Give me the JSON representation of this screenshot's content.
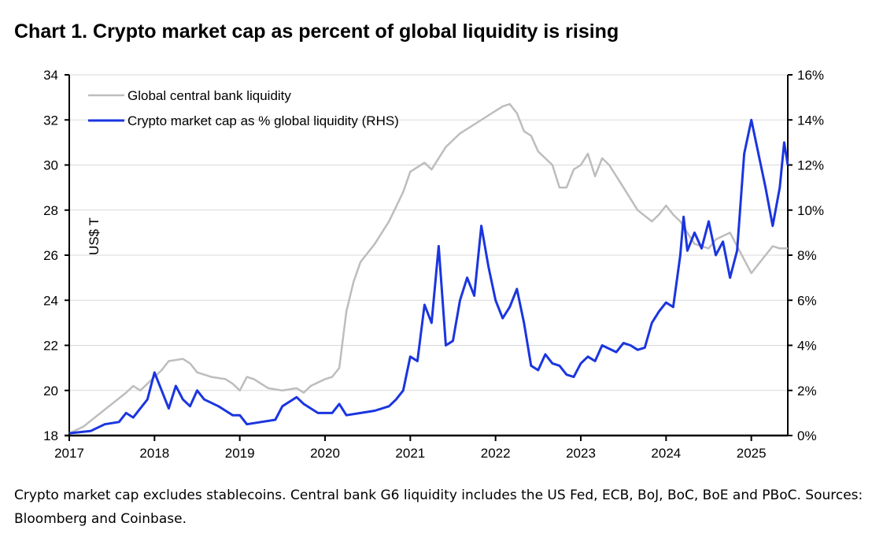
{
  "title": "Chart 1. Crypto market cap as percent of global liquidity is rising",
  "footnote": "Crypto market cap excludes stablecoins. Central bank G6 liquidity includes the US Fed, ECB, BoJ, BoC, BoE and PBoC. Sources: Bloomberg and Coinbase.",
  "chart_data": {
    "type": "line",
    "title": "Chart 1. Crypto market cap as percent of global liquidity is rising",
    "ylabel": "US$ T",
    "ylim": [
      18,
      34
    ],
    "y_ticks": [
      "18",
      "20",
      "22",
      "24",
      "26",
      "28",
      "30",
      "32",
      "34"
    ],
    "y2lim": [
      0,
      16
    ],
    "y2_ticks": [
      "0%",
      "2%",
      "4%",
      "6%",
      "8%",
      "10%",
      "12%",
      "14%",
      "16%"
    ],
    "x_ticks": [
      "2017",
      "2018",
      "2019",
      "2020",
      "2021",
      "2022",
      "2023",
      "2024",
      "2025"
    ],
    "xlim": [
      "2017-01",
      "2025-06-05"
    ],
    "grid": true,
    "legend_placement": "top-left",
    "series": [
      {
        "name": "Global central bank liquidity",
        "axis": "left",
        "color": "#bdbdbd",
        "points": [
          [
            "2017-01",
            18.1
          ],
          [
            "2017-03",
            18.4
          ],
          [
            "2017-05",
            18.9
          ],
          [
            "2017-07",
            19.4
          ],
          [
            "2017-09",
            19.9
          ],
          [
            "2017-10",
            20.2
          ],
          [
            "2017-11",
            20.0
          ],
          [
            "2018-01",
            20.6
          ],
          [
            "2018-02",
            20.9
          ],
          [
            "2018-03",
            21.3
          ],
          [
            "2018-05",
            21.4
          ],
          [
            "2018-06",
            21.2
          ],
          [
            "2018-07",
            20.8
          ],
          [
            "2018-09",
            20.6
          ],
          [
            "2018-11",
            20.5
          ],
          [
            "2018-12",
            20.3
          ],
          [
            "2019-01",
            20.0
          ],
          [
            "2019-02",
            20.6
          ],
          [
            "2019-03",
            20.5
          ],
          [
            "2019-05",
            20.1
          ],
          [
            "2019-07",
            20.0
          ],
          [
            "2019-09",
            20.1
          ],
          [
            "2019-10",
            19.9
          ],
          [
            "2019-11",
            20.2
          ],
          [
            "2020-01",
            20.5
          ],
          [
            "2020-02",
            20.6
          ],
          [
            "2020-03",
            21.0
          ],
          [
            "2020-04",
            23.5
          ],
          [
            "2020-05",
            24.8
          ],
          [
            "2020-06",
            25.7
          ],
          [
            "2020-08",
            26.5
          ],
          [
            "2020-10",
            27.5
          ],
          [
            "2020-12",
            28.8
          ],
          [
            "2021-01",
            29.7
          ],
          [
            "2021-03",
            30.1
          ],
          [
            "2021-04",
            29.8
          ],
          [
            "2021-06",
            30.8
          ],
          [
            "2021-08",
            31.4
          ],
          [
            "2021-10",
            31.8
          ],
          [
            "2021-12",
            32.2
          ],
          [
            "2022-02",
            32.6
          ],
          [
            "2022-03",
            32.7
          ],
          [
            "2022-04",
            32.3
          ],
          [
            "2022-05",
            31.5
          ],
          [
            "2022-06",
            31.3
          ],
          [
            "2022-07",
            30.6
          ],
          [
            "2022-09",
            30.0
          ],
          [
            "2022-10",
            29.0
          ],
          [
            "2022-11",
            29.0
          ],
          [
            "2022-12",
            29.8
          ],
          [
            "2023-01",
            30.0
          ],
          [
            "2023-02",
            30.5
          ],
          [
            "2023-03",
            29.5
          ],
          [
            "2023-04",
            30.3
          ],
          [
            "2023-05",
            30.0
          ],
          [
            "2023-07",
            29.0
          ],
          [
            "2023-09",
            28.0
          ],
          [
            "2023-11",
            27.5
          ],
          [
            "2023-12",
            27.8
          ],
          [
            "2024-01",
            28.2
          ],
          [
            "2024-02",
            27.8
          ],
          [
            "2024-03",
            27.5
          ],
          [
            "2024-04",
            27.0
          ],
          [
            "2024-05",
            26.5
          ],
          [
            "2024-07",
            26.3
          ],
          [
            "2024-08",
            26.7
          ],
          [
            "2024-10",
            27.0
          ],
          [
            "2024-11",
            26.4
          ],
          [
            "2024-12",
            25.8
          ],
          [
            "2025-01",
            25.2
          ],
          [
            "2025-02",
            25.6
          ],
          [
            "2025-03",
            26.0
          ],
          [
            "2025-04",
            26.4
          ],
          [
            "2025-05",
            26.3
          ],
          [
            "2025-06-05",
            26.3
          ]
        ]
      },
      {
        "name": "Crypto market cap as % global liquidity (RHS)",
        "axis": "right",
        "color": "#1a35e0",
        "points": [
          [
            "2017-01",
            0.1
          ],
          [
            "2017-04",
            0.2
          ],
          [
            "2017-06",
            0.5
          ],
          [
            "2017-08",
            0.6
          ],
          [
            "2017-09",
            1.0
          ],
          [
            "2017-10",
            0.8
          ],
          [
            "2017-11",
            1.2
          ],
          [
            "2017-12",
            1.6
          ],
          [
            "2018-01",
            2.8
          ],
          [
            "2018-02",
            2.0
          ],
          [
            "2018-03",
            1.2
          ],
          [
            "2018-04",
            2.2
          ],
          [
            "2018-05",
            1.6
          ],
          [
            "2018-06",
            1.3
          ],
          [
            "2018-07",
            2.0
          ],
          [
            "2018-08",
            1.6
          ],
          [
            "2018-10",
            1.3
          ],
          [
            "2018-11",
            1.1
          ],
          [
            "2018-12",
            0.9
          ],
          [
            "2019-01",
            0.9
          ],
          [
            "2019-02",
            0.5
          ],
          [
            "2019-04",
            0.6
          ],
          [
            "2019-06",
            0.7
          ],
          [
            "2019-07",
            1.3
          ],
          [
            "2019-09",
            1.7
          ],
          [
            "2019-10",
            1.4
          ],
          [
            "2019-12",
            1.0
          ],
          [
            "2020-02",
            1.0
          ],
          [
            "2020-03",
            1.4
          ],
          [
            "2020-04",
            0.9
          ],
          [
            "2020-06",
            1.0
          ],
          [
            "2020-08",
            1.1
          ],
          [
            "2020-10",
            1.3
          ],
          [
            "2020-11",
            1.6
          ],
          [
            "2020-12",
            2.0
          ],
          [
            "2021-01",
            3.5
          ],
          [
            "2021-02",
            3.3
          ],
          [
            "2021-03",
            5.8
          ],
          [
            "2021-04",
            5.0
          ],
          [
            "2021-05",
            8.4
          ],
          [
            "2021-06",
            4.0
          ],
          [
            "2021-07",
            4.2
          ],
          [
            "2021-08",
            6.0
          ],
          [
            "2021-09",
            7.0
          ],
          [
            "2021-10",
            6.2
          ],
          [
            "2021-11",
            9.3
          ],
          [
            "2021-12",
            7.5
          ],
          [
            "2022-01",
            6.0
          ],
          [
            "2022-02",
            5.2
          ],
          [
            "2022-03",
            5.7
          ],
          [
            "2022-04",
            6.5
          ],
          [
            "2022-05",
            5.0
          ],
          [
            "2022-06",
            3.1
          ],
          [
            "2022-07",
            2.9
          ],
          [
            "2022-08",
            3.6
          ],
          [
            "2022-09",
            3.2
          ],
          [
            "2022-10",
            3.1
          ],
          [
            "2022-11",
            2.7
          ],
          [
            "2022-12",
            2.6
          ],
          [
            "2023-01",
            3.2
          ],
          [
            "2023-02",
            3.5
          ],
          [
            "2023-03",
            3.3
          ],
          [
            "2023-04",
            4.0
          ],
          [
            "2023-06",
            3.7
          ],
          [
            "2023-07",
            4.1
          ],
          [
            "2023-08",
            4.0
          ],
          [
            "2023-09",
            3.8
          ],
          [
            "2023-10",
            3.9
          ],
          [
            "2023-11",
            5.0
          ],
          [
            "2023-12",
            5.5
          ],
          [
            "2024-01",
            5.9
          ],
          [
            "2024-02",
            5.7
          ],
          [
            "2024-03",
            8.0
          ],
          [
            "2024-03-15",
            9.7
          ],
          [
            "2024-04",
            8.2
          ],
          [
            "2024-05",
            9.0
          ],
          [
            "2024-06",
            8.3
          ],
          [
            "2024-07",
            9.5
          ],
          [
            "2024-08",
            8.0
          ],
          [
            "2024-09",
            8.6
          ],
          [
            "2024-10",
            7.0
          ],
          [
            "2024-11",
            8.2
          ],
          [
            "2024-12",
            12.5
          ],
          [
            "2025-01",
            14.0
          ],
          [
            "2025-02",
            12.5
          ],
          [
            "2025-03",
            11.0
          ],
          [
            "2025-04",
            9.3
          ],
          [
            "2025-05",
            11.0
          ],
          [
            "2025-05-20",
            13.0
          ],
          [
            "2025-06-05",
            12.0
          ]
        ]
      }
    ]
  }
}
